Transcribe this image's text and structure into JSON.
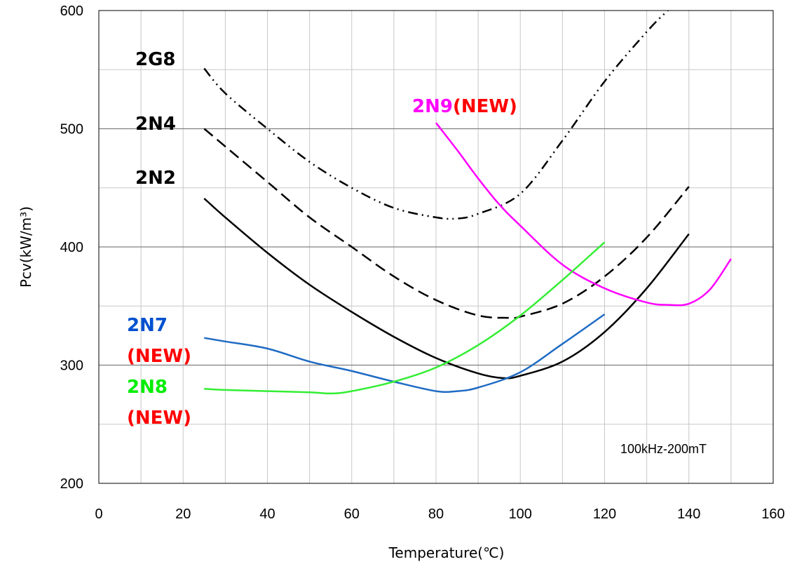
{
  "chart_data": {
    "type": "line",
    "xlabel": "Temperature(℃)",
    "ylabel": "Pcv(kW/m³)",
    "annotation": "100kHz-200mT",
    "xlim": [
      0,
      160
    ],
    "ylim": [
      200,
      600
    ],
    "x_ticks": [
      0,
      20,
      40,
      60,
      80,
      100,
      120,
      140,
      160
    ],
    "y_ticks": [
      200,
      300,
      400,
      500,
      600
    ],
    "grid": true,
    "legend": "inline labels",
    "series": [
      {
        "name": "2G8",
        "label_parts": [
          "2G8"
        ],
        "label_colors": [
          "#000000"
        ],
        "color": "#000000",
        "dash": "dashdotdot",
        "x": [
          25,
          30,
          40,
          50,
          60,
          70,
          80,
          85,
          90,
          100,
          110,
          120,
          130,
          135,
          140
        ],
        "y": [
          551,
          530,
          500,
          472,
          450,
          433,
          425,
          424,
          428,
          445,
          490,
          540,
          582,
          600,
          616
        ]
      },
      {
        "name": "2N4",
        "label_parts": [
          "2N4"
        ],
        "label_colors": [
          "#000000"
        ],
        "color": "#000000",
        "dash": "dashed",
        "x": [
          25,
          30,
          40,
          50,
          60,
          70,
          80,
          90,
          97,
          100,
          110,
          120,
          130,
          140
        ],
        "y": [
          500,
          485,
          455,
          425,
          400,
          375,
          355,
          342,
          340,
          341,
          352,
          375,
          408,
          451
        ]
      },
      {
        "name": "2N2",
        "label_parts": [
          "2N2"
        ],
        "label_colors": [
          "#000000"
        ],
        "color": "#000000",
        "dash": "solid",
        "x": [
          25,
          30,
          40,
          50,
          60,
          70,
          80,
          90,
          96,
          100,
          110,
          120,
          130,
          140
        ],
        "y": [
          441,
          425,
          395,
          368,
          345,
          324,
          306,
          293,
          289,
          291,
          303,
          328,
          365,
          411
        ]
      },
      {
        "name": "2N9(NEW)",
        "label_parts": [
          "2N9",
          "(NEW)"
        ],
        "label_colors": [
          "#ff00ff",
          "#ff0000"
        ],
        "color": "#ff00ff",
        "dash": "solid",
        "x": [
          80,
          85,
          90,
          95,
          100,
          110,
          120,
          130,
          135,
          140,
          145,
          150
        ],
        "y": [
          505,
          482,
          458,
          436,
          418,
          385,
          365,
          353,
          351,
          352,
          364,
          390
        ]
      },
      {
        "name": "2N7 (NEW)",
        "label_parts": [
          "2N7",
          "(NEW)"
        ],
        "label_colors": [
          "#0050d0",
          "#ff0000"
        ],
        "color": "#1f6bc4",
        "dash": "solid",
        "x": [
          25,
          30,
          40,
          50,
          60,
          70,
          80,
          85,
          90,
          100,
          110,
          120
        ],
        "y": [
          323,
          320,
          314,
          303,
          295,
          286,
          278,
          278,
          281,
          294,
          318,
          343
        ]
      },
      {
        "name": "2N8 (NEW)",
        "label_parts": [
          "2N8",
          "(NEW)"
        ],
        "label_colors": [
          "#00ee00",
          "#ff0000"
        ],
        "color": "#33ee33",
        "dash": "solid",
        "x": [
          25,
          30,
          40,
          50,
          55,
          60,
          70,
          80,
          90,
          100,
          110,
          120
        ],
        "y": [
          280,
          279,
          278,
          277,
          276,
          278,
          286,
          298,
          317,
          342,
          372,
          404
        ]
      }
    ]
  }
}
